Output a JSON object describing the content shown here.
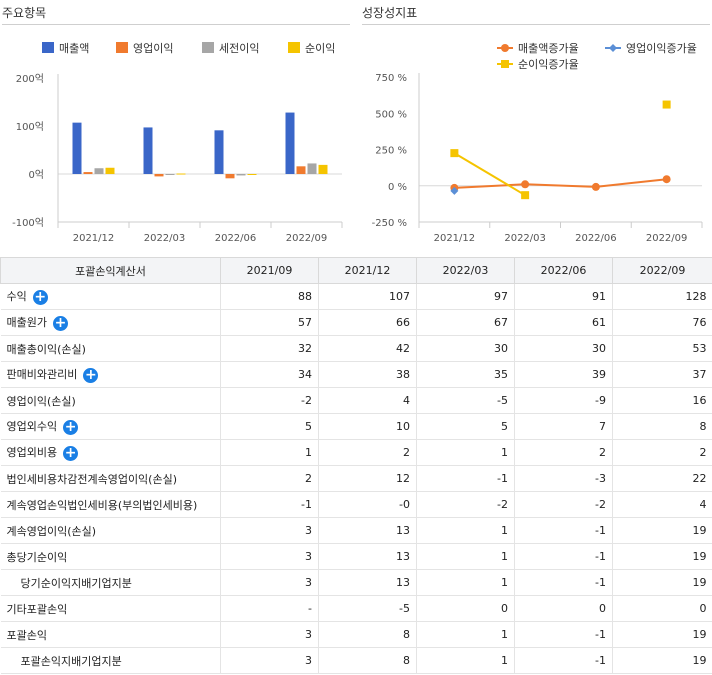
{
  "left_panel": {
    "title": "주요항목"
  },
  "right_panel": {
    "title": "성장성지표"
  },
  "chart_data": [
    {
      "type": "bar",
      "categories": [
        "2021/12",
        "2022/03",
        "2022/06",
        "2022/09"
      ],
      "ylim": [
        -100,
        200
      ],
      "yticks": [
        "200억",
        "100억",
        "0억",
        "-100억"
      ],
      "ytick_values": [
        200,
        100,
        0,
        -100
      ],
      "series": [
        {
          "name": "매출액",
          "color": "#3a66c8",
          "values": [
            107,
            97,
            91,
            128
          ]
        },
        {
          "name": "영업이익",
          "color": "#f07a2e",
          "values": [
            4,
            -5,
            -9,
            16
          ]
        },
        {
          "name": "세전이익",
          "color": "#a6a6a6",
          "values": [
            12,
            -1,
            -3,
            22
          ]
        },
        {
          "name": "순이익",
          "color": "#f5c400",
          "values": [
            13,
            1,
            -1,
            19
          ]
        }
      ]
    },
    {
      "type": "line",
      "categories": [
        "2021/12",
        "2022/03",
        "2022/06",
        "2022/09"
      ],
      "ylim": [
        -250,
        750
      ],
      "yticks": [
        "750 %",
        "500 %",
        "250 %",
        "0 %",
        "-250 %"
      ],
      "ytick_values": [
        750,
        500,
        250,
        0,
        -250
      ],
      "series": [
        {
          "name": "매출액증가율",
          "color": "#f07a2e",
          "marker": "circle",
          "values": [
            -15,
            10,
            -8,
            45
          ]
        },
        {
          "name": "영업이익증가율",
          "color": "#5b8fd6",
          "marker": "diamond",
          "values": [
            -35,
            null,
            null,
            null
          ]
        },
        {
          "name": "순이익증가율",
          "color": "#f5c400",
          "marker": "square",
          "values": [
            225,
            -65,
            null,
            560
          ]
        }
      ]
    }
  ],
  "table": {
    "header": [
      "포괄손익계산서",
      "2021/09",
      "2021/12",
      "2022/03",
      "2022/06",
      "2022/09"
    ],
    "rows": [
      {
        "label": "수익",
        "plus": true,
        "indent": false,
        "values": [
          "88",
          "107",
          "97",
          "91",
          "128"
        ]
      },
      {
        "label": "매출원가",
        "plus": true,
        "indent": false,
        "values": [
          "57",
          "66",
          "67",
          "61",
          "76"
        ]
      },
      {
        "label": "매출총이익(손실)",
        "plus": false,
        "indent": false,
        "values": [
          "32",
          "42",
          "30",
          "30",
          "53"
        ]
      },
      {
        "label": "판매비와관리비",
        "plus": true,
        "indent": false,
        "values": [
          "34",
          "38",
          "35",
          "39",
          "37"
        ]
      },
      {
        "label": "영업이익(손실)",
        "plus": false,
        "indent": false,
        "values": [
          "-2",
          "4",
          "-5",
          "-9",
          "16"
        ]
      },
      {
        "label": "영업외수익",
        "plus": true,
        "indent": false,
        "values": [
          "5",
          "10",
          "5",
          "7",
          "8"
        ]
      },
      {
        "label": "영업외비용",
        "plus": true,
        "indent": false,
        "values": [
          "1",
          "2",
          "1",
          "2",
          "2"
        ]
      },
      {
        "label": "법인세비용차감전계속영업이익(손실)",
        "plus": false,
        "indent": false,
        "values": [
          "2",
          "12",
          "-1",
          "-3",
          "22"
        ]
      },
      {
        "label": "계속영업손익법인세비용(부의법인세비용)",
        "plus": false,
        "indent": false,
        "values": [
          "-1",
          "-0",
          "-2",
          "-2",
          "4"
        ]
      },
      {
        "label": "계속영업이익(손실)",
        "plus": false,
        "indent": false,
        "values": [
          "3",
          "13",
          "1",
          "-1",
          "19"
        ]
      },
      {
        "label": "총당기순이익",
        "plus": false,
        "indent": false,
        "values": [
          "3",
          "13",
          "1",
          "-1",
          "19"
        ]
      },
      {
        "label": "당기순이익지배기업지분",
        "plus": false,
        "indent": true,
        "values": [
          "3",
          "13",
          "1",
          "-1",
          "19"
        ]
      },
      {
        "label": "기타포괄손익",
        "plus": false,
        "indent": false,
        "values": [
          "-",
          "-5",
          "0",
          "0",
          "0"
        ]
      },
      {
        "label": "포괄손익",
        "plus": false,
        "indent": false,
        "values": [
          "3",
          "8",
          "1",
          "-1",
          "19"
        ]
      },
      {
        "label": "포괄손익지배기업지분",
        "plus": false,
        "indent": true,
        "values": [
          "3",
          "8",
          "1",
          "-1",
          "19"
        ]
      }
    ]
  }
}
